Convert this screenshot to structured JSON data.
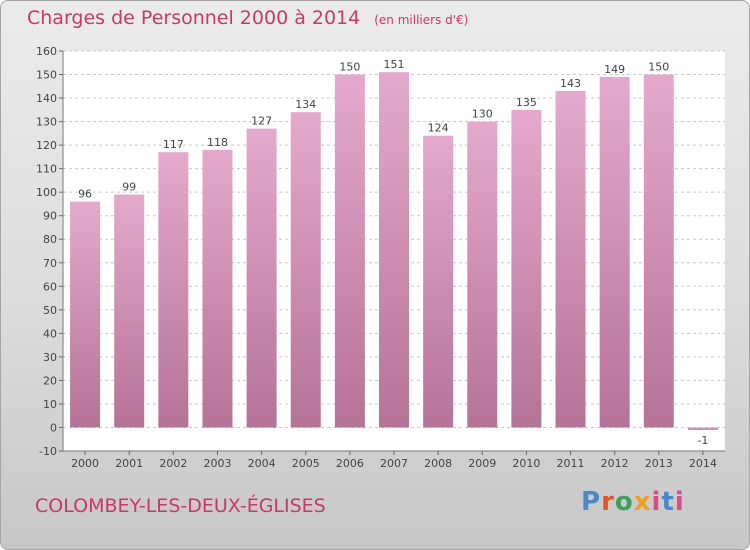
{
  "header": {
    "title": "Charges de Personnel 2000 à 2014",
    "unit": "(en milliers d'€)"
  },
  "footer": {
    "city": "COLOMBEY-LES-DEUX-ÉGLISES",
    "logo": "Proxiti"
  },
  "colors": {
    "bar_top": "#e4a9cc",
    "bar_bottom": "#b57397",
    "accent": "#c8386a"
  },
  "chart_data": {
    "type": "bar",
    "title": "Charges de Personnel 2000 à 2014",
    "subtitle": "(en milliers d'€)",
    "categories": [
      "2000",
      "2001",
      "2002",
      "2003",
      "2004",
      "2005",
      "2006",
      "2007",
      "2008",
      "2009",
      "2010",
      "2011",
      "2012",
      "2013",
      "2014"
    ],
    "values": [
      96,
      99,
      117,
      118,
      127,
      134,
      150,
      151,
      124,
      130,
      135,
      143,
      149,
      150,
      -1
    ],
    "data_labels": [
      "96",
      "99",
      "117",
      "118",
      "127",
      "134",
      "150",
      "151",
      "124",
      "130",
      "135",
      "143",
      "149",
      "150",
      "-1"
    ],
    "ylim": [
      -10,
      160
    ],
    "yticks": [
      -10,
      0,
      10,
      20,
      30,
      40,
      50,
      60,
      70,
      80,
      90,
      100,
      110,
      120,
      130,
      140,
      150,
      160
    ],
    "grid": true,
    "xlabel": "",
    "ylabel": ""
  }
}
